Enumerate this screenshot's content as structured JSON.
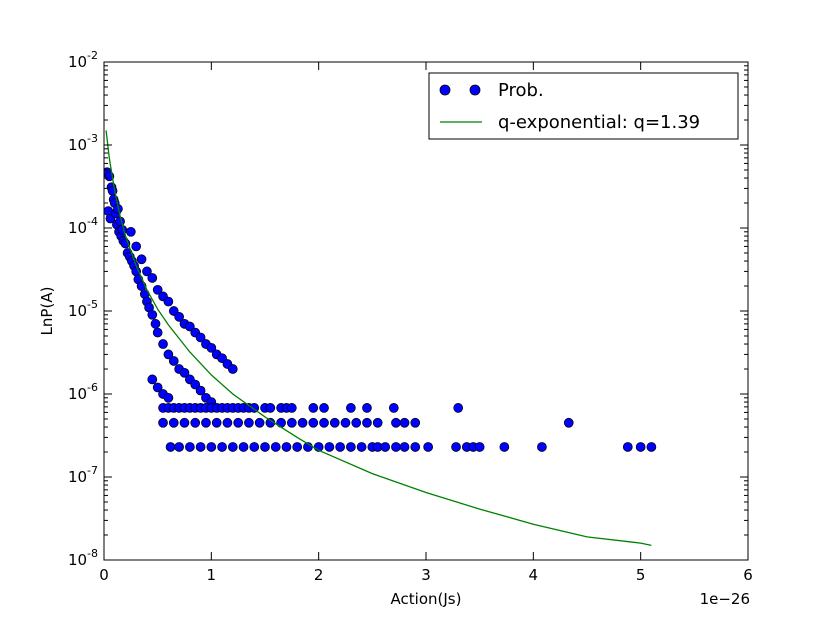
{
  "chart_data": {
    "type": "scatter",
    "xlabel": "Action(Js)",
    "ylabel": "LnP(A)",
    "x_offset_text": "1e−26",
    "x_scale": "linear",
    "y_scale": "log",
    "xlim": [
      0,
      6
    ],
    "ylim": [
      1e-08,
      0.01
    ],
    "x_ticks": [
      "0",
      "1",
      "2",
      "3",
      "4",
      "5",
      "6"
    ],
    "y_ticks": [
      {
        "base": "10",
        "exp": "-8"
      },
      {
        "base": "10",
        "exp": "-7"
      },
      {
        "base": "10",
        "exp": "-6"
      },
      {
        "base": "10",
        "exp": "-5"
      },
      {
        "base": "10",
        "exp": "-4"
      },
      {
        "base": "10",
        "exp": "-3"
      },
      {
        "base": "10",
        "exp": "-2"
      }
    ],
    "grid": false,
    "legend_position": "top-right",
    "series": [
      {
        "name": "Prob.",
        "kind": "markers",
        "color": "#0000ff",
        "edge_color": "#000000",
        "x_unit": "1e-26 Js",
        "points": [
          [
            0.03,
            0.00047
          ],
          [
            0.04,
            0.00016
          ],
          [
            0.05,
            0.00042
          ],
          [
            0.06,
            0.00013
          ],
          [
            0.07,
            0.00031
          ],
          [
            0.08,
            0.00028
          ],
          [
            0.09,
            0.00022
          ],
          [
            0.1,
            0.0002
          ],
          [
            0.11,
            0.00015
          ],
          [
            0.12,
            0.00011
          ],
          [
            0.13,
            0.00017
          ],
          [
            0.14,
            9e-05
          ],
          [
            0.15,
            0.00012
          ],
          [
            0.16,
            8e-05
          ],
          [
            0.17,
            9.5e-05
          ],
          [
            0.18,
            7e-05
          ],
          [
            0.2,
            6.5e-05
          ],
          [
            0.22,
            5e-05
          ],
          [
            0.24,
            4.5e-05
          ],
          [
            0.26,
            4e-05
          ],
          [
            0.28,
            3.5e-05
          ],
          [
            0.3,
            3e-05
          ],
          [
            0.32,
            2.4e-05
          ],
          [
            0.35,
            2e-05
          ],
          [
            0.38,
            1.6e-05
          ],
          [
            0.4,
            1.3e-05
          ],
          [
            0.42,
            1.1e-05
          ],
          [
            0.45,
            9e-06
          ],
          [
            0.48,
            7e-06
          ],
          [
            0.5,
            5.5e-06
          ],
          [
            0.25,
            9e-05
          ],
          [
            0.3,
            6e-05
          ],
          [
            0.35,
            4.2e-05
          ],
          [
            0.4,
            3e-05
          ],
          [
            0.45,
            2.5e-05
          ],
          [
            0.5,
            1.8e-05
          ],
          [
            0.55,
            1.5e-05
          ],
          [
            0.6,
            1.3e-05
          ],
          [
            0.65,
            1e-05
          ],
          [
            0.7,
            8.5e-06
          ],
          [
            0.75,
            7e-06
          ],
          [
            0.8,
            6.5e-06
          ],
          [
            0.85,
            5.5e-06
          ],
          [
            0.9,
            4.8e-06
          ],
          [
            0.95,
            4e-06
          ],
          [
            1.0,
            3.6e-06
          ],
          [
            1.05,
            3e-06
          ],
          [
            1.1,
            2.7e-06
          ],
          [
            1.15,
            2.3e-06
          ],
          [
            1.2,
            2e-06
          ],
          [
            0.55,
            4e-06
          ],
          [
            0.6,
            3e-06
          ],
          [
            0.65,
            2.5e-06
          ],
          [
            0.7,
            2e-06
          ],
          [
            0.75,
            1.8e-06
          ],
          [
            0.8,
            1.5e-06
          ],
          [
            0.85,
            1.3e-06
          ],
          [
            0.9,
            1.1e-06
          ],
          [
            0.95,
            9e-07
          ],
          [
            1.0,
            8e-07
          ],
          [
            0.45,
            1.5e-06
          ],
          [
            0.5,
            1.2e-06
          ],
          [
            0.55,
            1e-06
          ],
          [
            0.6,
            9e-07
          ],
          [
            0.55,
            6.8e-07
          ],
          [
            0.6,
            6.8e-07
          ],
          [
            0.65,
            6.8e-07
          ],
          [
            0.7,
            6.8e-07
          ],
          [
            0.75,
            6.8e-07
          ],
          [
            0.8,
            6.8e-07
          ],
          [
            0.85,
            6.8e-07
          ],
          [
            0.9,
            6.8e-07
          ],
          [
            0.95,
            6.8e-07
          ],
          [
            1.0,
            6.8e-07
          ],
          [
            1.05,
            6.8e-07
          ],
          [
            1.1,
            6.8e-07
          ],
          [
            1.15,
            6.8e-07
          ],
          [
            1.2,
            6.8e-07
          ],
          [
            1.25,
            6.8e-07
          ],
          [
            1.3,
            6.8e-07
          ],
          [
            1.35,
            6.8e-07
          ],
          [
            1.4,
            6.8e-07
          ],
          [
            1.5,
            6.8e-07
          ],
          [
            1.55,
            6.8e-07
          ],
          [
            1.65,
            6.8e-07
          ],
          [
            1.7,
            6.8e-07
          ],
          [
            1.75,
            6.8e-07
          ],
          [
            1.95,
            6.8e-07
          ],
          [
            2.05,
            6.8e-07
          ],
          [
            2.3,
            6.8e-07
          ],
          [
            2.45,
            6.8e-07
          ],
          [
            2.7,
            6.8e-07
          ],
          [
            3.3,
            6.8e-07
          ],
          [
            0.55,
            4.5e-07
          ],
          [
            0.65,
            4.5e-07
          ],
          [
            0.75,
            4.5e-07
          ],
          [
            0.85,
            4.5e-07
          ],
          [
            0.95,
            4.5e-07
          ],
          [
            1.05,
            4.5e-07
          ],
          [
            1.15,
            4.5e-07
          ],
          [
            1.25,
            4.5e-07
          ],
          [
            1.35,
            4.5e-07
          ],
          [
            1.45,
            4.5e-07
          ],
          [
            1.55,
            4.5e-07
          ],
          [
            1.65,
            4.5e-07
          ],
          [
            1.75,
            4.5e-07
          ],
          [
            1.85,
            4.5e-07
          ],
          [
            1.95,
            4.5e-07
          ],
          [
            2.05,
            4.5e-07
          ],
          [
            2.15,
            4.5e-07
          ],
          [
            2.25,
            4.5e-07
          ],
          [
            2.35,
            4.5e-07
          ],
          [
            2.45,
            4.5e-07
          ],
          [
            2.55,
            4.5e-07
          ],
          [
            2.72,
            4.5e-07
          ],
          [
            2.8,
            4.5e-07
          ],
          [
            2.9,
            4.5e-07
          ],
          [
            4.33,
            4.5e-07
          ],
          [
            0.62,
            2.3e-07
          ],
          [
            0.7,
            2.3e-07
          ],
          [
            0.8,
            2.3e-07
          ],
          [
            0.9,
            2.3e-07
          ],
          [
            1.0,
            2.3e-07
          ],
          [
            1.1,
            2.3e-07
          ],
          [
            1.2,
            2.3e-07
          ],
          [
            1.3,
            2.3e-07
          ],
          [
            1.4,
            2.3e-07
          ],
          [
            1.5,
            2.3e-07
          ],
          [
            1.6,
            2.3e-07
          ],
          [
            1.7,
            2.3e-07
          ],
          [
            1.8,
            2.3e-07
          ],
          [
            1.9,
            2.3e-07
          ],
          [
            2.0,
            2.3e-07
          ],
          [
            2.1,
            2.3e-07
          ],
          [
            2.2,
            2.3e-07
          ],
          [
            2.3,
            2.3e-07
          ],
          [
            2.4,
            2.3e-07
          ],
          [
            2.5,
            2.3e-07
          ],
          [
            2.55,
            2.3e-07
          ],
          [
            2.62,
            2.3e-07
          ],
          [
            2.72,
            2.3e-07
          ],
          [
            2.8,
            2.3e-07
          ],
          [
            2.9,
            2.3e-07
          ],
          [
            3.02,
            2.3e-07
          ],
          [
            3.28,
            2.3e-07
          ],
          [
            3.38,
            2.3e-07
          ],
          [
            3.44,
            2.3e-07
          ],
          [
            3.5,
            2.3e-07
          ],
          [
            3.73,
            2.3e-07
          ],
          [
            4.08,
            2.3e-07
          ],
          [
            4.88,
            2.3e-07
          ],
          [
            5.0,
            2.3e-07
          ],
          [
            5.1,
            2.3e-07
          ]
        ]
      },
      {
        "name": "q-exponential: q=1.39",
        "kind": "line",
        "color": "#008000",
        "x": [
          0.02,
          0.05,
          0.1,
          0.15,
          0.2,
          0.3,
          0.4,
          0.5,
          0.6,
          0.8,
          1.0,
          1.2,
          1.5,
          1.8,
          2.0,
          2.5,
          3.0,
          3.5,
          4.0,
          4.5,
          5.0,
          5.1
        ],
        "y": [
          0.0015,
          0.00068,
          0.00028,
          0.00014,
          8e-05,
          3.5e-05,
          1.8e-05,
          1.05e-05,
          6.8e-06,
          3.2e-06,
          1.7e-06,
          1e-06,
          5.3e-07,
          3e-07,
          2.1e-07,
          1.1e-07,
          6.5e-08,
          4.1e-08,
          2.7e-08,
          1.9e-08,
          1.6e-08,
          1.5e-08
        ]
      }
    ]
  }
}
